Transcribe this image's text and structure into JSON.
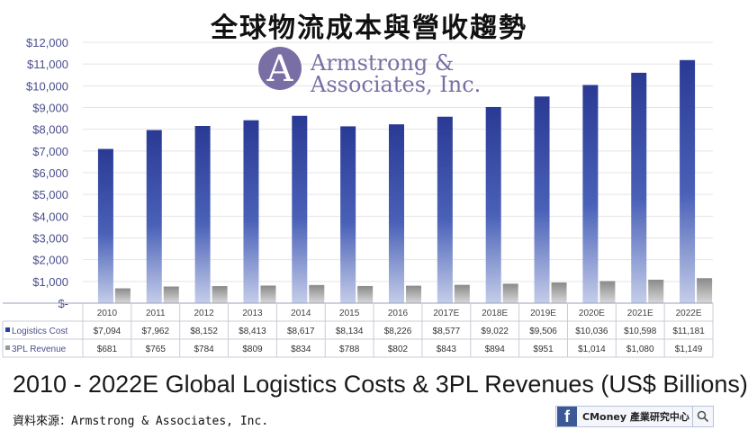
{
  "page_title": "全球物流成本與營收趨勢",
  "logo": {
    "line1": "Armstrong &",
    "line2": "Associates, Inc.",
    "mark": "A"
  },
  "chart_data": {
    "type": "bar",
    "title": "2010 - 2022E Global Logistics Costs & 3PL Revenues (US$ Billions)",
    "categories": [
      "2010",
      "2011",
      "2012",
      "2013",
      "2014",
      "2015",
      "2016",
      "2017E",
      "2018E",
      "2019E",
      "2020E",
      "2021E",
      "2022E"
    ],
    "series": [
      {
        "name": "Logistics Cost",
        "values": [
          7094,
          7962,
          8152,
          8413,
          8617,
          8134,
          8226,
          8577,
          9022,
          9506,
          10036,
          10598,
          11181
        ],
        "labels": [
          "$7,094",
          "$7,962",
          "$8,152",
          "$8,413",
          "$8,617",
          "$8,134",
          "$8,226",
          "$8,577",
          "$9,022",
          "$9,506",
          "$10,036",
          "$10,598",
          "$11,181"
        ],
        "color": "#2b3f9b"
      },
      {
        "name": "3PL Revenue",
        "values": [
          681,
          765,
          784,
          809,
          834,
          788,
          802,
          843,
          894,
          951,
          1014,
          1080,
          1149
        ],
        "labels": [
          "$681",
          "$765",
          "$784",
          "$809",
          "$834",
          "$788",
          "$802",
          "$843",
          "$894",
          "$951",
          "$1,014",
          "$1,080",
          "$1,149"
        ],
        "color": "#9a9a9a"
      }
    ],
    "y_ticks": [
      "$-",
      "$1,000",
      "$2,000",
      "$3,000",
      "$4,000",
      "$5,000",
      "$6,000",
      "$7,000",
      "$8,000",
      "$9,000",
      "$10,000",
      "$11,000",
      "$12,000"
    ],
    "ylim": [
      0,
      12000
    ],
    "grid": true,
    "legend": "table-below"
  },
  "source": "資料來源：Armstrong & Associates, Inc.",
  "badge": {
    "text": "CMoney 產業研究中心",
    "icons": [
      "facebook-icon",
      "search-icon"
    ]
  }
}
